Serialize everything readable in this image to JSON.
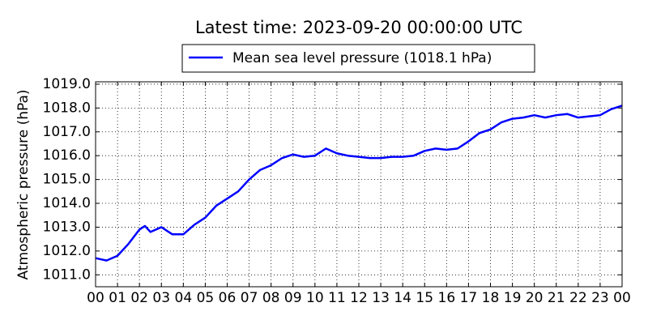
{
  "chart_data": {
    "type": "line",
    "title": "Latest time: 2023-09-20 00:00:00 UTC",
    "y_label": "Atmospheric pressure (hPa)",
    "x": [
      0,
      0.5,
      1,
      1.5,
      2,
      2.25,
      2.5,
      3,
      3.5,
      4,
      4.5,
      5,
      5.5,
      6,
      6.5,
      7,
      7.5,
      8,
      8.5,
      9,
      9.5,
      10,
      10.5,
      11,
      11.5,
      12,
      12.5,
      13,
      13.5,
      14,
      14.5,
      15,
      15.5,
      16,
      16.5,
      17,
      17.5,
      18,
      18.5,
      19,
      19.5,
      20,
      20.5,
      21,
      21.5,
      22,
      22.5,
      23,
      23.5,
      24
    ],
    "series": [
      {
        "name": "Mean sea level pressure (1018.1 hPa)",
        "color": "#0000ff",
        "values": [
          1011.7,
          1011.6,
          1011.8,
          1012.3,
          1012.9,
          1013.05,
          1012.8,
          1013.0,
          1012.7,
          1012.7,
          1013.1,
          1013.4,
          1013.9,
          1014.2,
          1014.5,
          1015.0,
          1015.4,
          1015.6,
          1015.9,
          1016.05,
          1015.95,
          1016.0,
          1016.3,
          1016.1,
          1016.0,
          1015.95,
          1015.9,
          1015.9,
          1015.95,
          1015.95,
          1016.0,
          1016.2,
          1016.3,
          1016.25,
          1016.3,
          1016.6,
          1016.95,
          1017.1,
          1017.4,
          1017.55,
          1017.6,
          1017.7,
          1017.6,
          1017.7,
          1017.75,
          1017.6,
          1017.65,
          1017.7,
          1017.95,
          1018.1
        ]
      }
    ],
    "xlim": [
      0,
      24
    ],
    "xticks": [
      {
        "value": 0,
        "label": "00"
      },
      {
        "value": 1,
        "label": "01"
      },
      {
        "value": 2,
        "label": "02"
      },
      {
        "value": 3,
        "label": "03"
      },
      {
        "value": 4,
        "label": "04"
      },
      {
        "value": 5,
        "label": "05"
      },
      {
        "value": 6,
        "label": "06"
      },
      {
        "value": 7,
        "label": "07"
      },
      {
        "value": 8,
        "label": "08"
      },
      {
        "value": 9,
        "label": "09"
      },
      10,
      11,
      12,
      13,
      14,
      15,
      16,
      17,
      18,
      19,
      20,
      21,
      22,
      23,
      {
        "value": 24,
        "label": "00"
      }
    ],
    "ylim": [
      1010.5,
      1019.1
    ],
    "yticks": [
      {
        "value": 1011,
        "label": "1011.0"
      },
      {
        "value": 1012,
        "label": "1012.0"
      },
      {
        "value": 1013,
        "label": "1013.0"
      },
      {
        "value": 1014,
        "label": "1014.0"
      },
      {
        "value": 1015,
        "label": "1015.0"
      },
      {
        "value": 1016,
        "label": "1016.0"
      },
      {
        "value": 1017,
        "label": "1017.0"
      },
      {
        "value": 1018,
        "label": "1018.0"
      },
      {
        "value": 1019,
        "label": "1019.0"
      }
    ],
    "grid": true,
    "legend": "top"
  }
}
